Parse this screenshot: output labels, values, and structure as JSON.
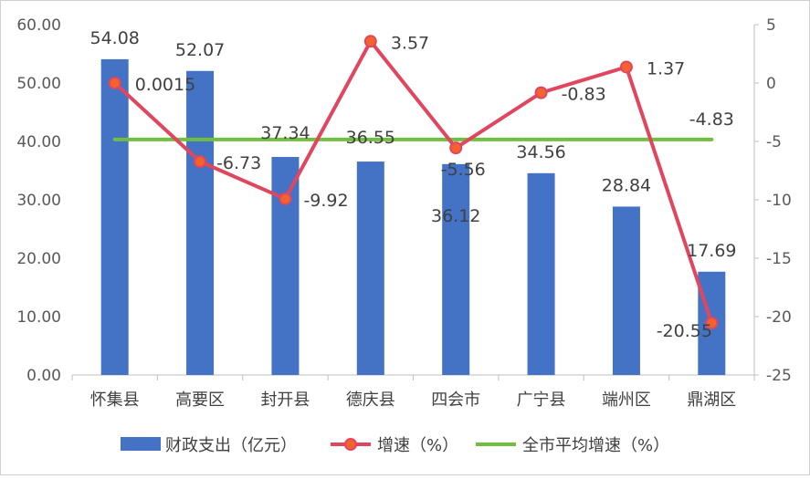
{
  "chart_data": {
    "type": "bar",
    "categories": [
      "怀集县",
      "高要区",
      "封开县",
      "德庆县",
      "四会市",
      "广宁县",
      "端州区",
      "鼎湖区"
    ],
    "series": [
      {
        "name": "财政支出（亿元）",
        "type": "bar",
        "axis": "left",
        "color": "#4472C4",
        "values": [
          54.08,
          52.07,
          37.34,
          36.55,
          36.12,
          34.56,
          28.84,
          17.69
        ],
        "labels": [
          "54.08",
          "52.07",
          "37.34",
          "36.55",
          "36.12",
          "34.56",
          "28.84",
          "17.69"
        ]
      },
      {
        "name": "增速（%）",
        "type": "line",
        "axis": "right",
        "color": "#E0475E",
        "marker_fill": "#F4622D",
        "values": [
          0.0015,
          -6.73,
          -9.92,
          3.57,
          -5.56,
          -0.83,
          1.37,
          -20.55
        ],
        "labels": [
          "0.0015",
          "-6.73",
          "-9.92",
          "3.57",
          "-5.56",
          "-0.83",
          "1.37",
          "-20.55"
        ]
      },
      {
        "name": "全市平均增速（%）",
        "type": "line",
        "axis": "right",
        "color": "#70BF41",
        "values": [
          -4.83,
          -4.83,
          -4.83,
          -4.83,
          -4.83,
          -4.83,
          -4.83,
          -4.83
        ],
        "labels": [
          "-4.83"
        ]
      }
    ],
    "y_left": {
      "ylim": [
        0,
        60
      ],
      "ticks": [
        "0.00",
        "10.00",
        "20.00",
        "30.00",
        "40.00",
        "50.00",
        "60.00"
      ]
    },
    "y_right": {
      "ylim": [
        -25,
        5
      ],
      "ticks": [
        "-25",
        "-20",
        "-15",
        "-10",
        "-5",
        "0",
        "5"
      ]
    },
    "legend": {
      "position": "bottom",
      "items": [
        "财政支出（亿元）",
        "增速（%）",
        "全市平均增速（%）"
      ]
    },
    "grid": false
  }
}
